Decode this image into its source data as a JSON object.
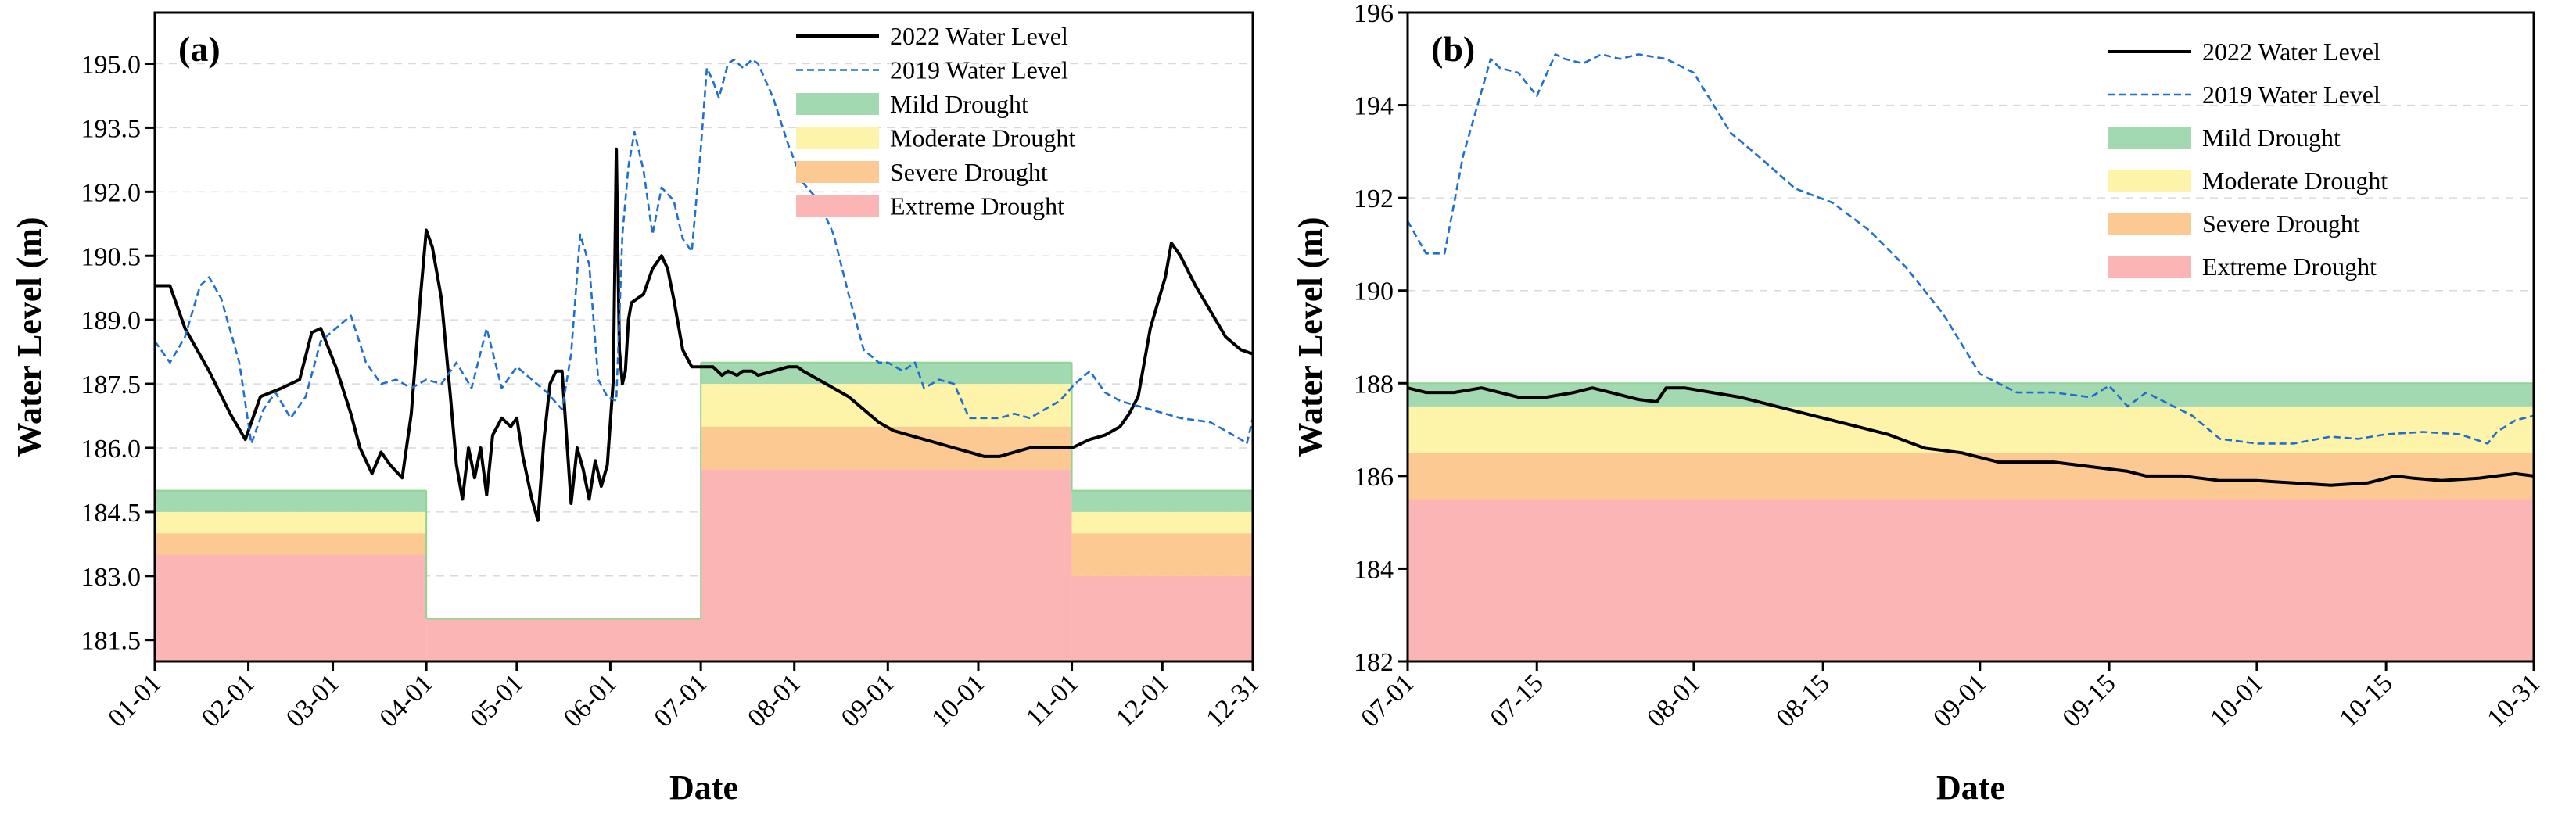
{
  "chart_data": [
    {
      "type": "line",
      "panel_label": "(a)",
      "xlabel": "Date",
      "ylabel": "Water Level (m)",
      "ylim": [
        181.0,
        196.2
      ],
      "xlim": [
        0,
        364
      ],
      "yticks": [
        181.5,
        183.0,
        184.5,
        186.0,
        187.5,
        189.0,
        190.5,
        192.0,
        193.5,
        195.0
      ],
      "ytick_labels": [
        "181.5",
        "183.0",
        "184.5",
        "186.0",
        "187.5",
        "189.0",
        "190.5",
        "192.0",
        "193.5",
        "195.0"
      ],
      "xticks": [
        0,
        31,
        59,
        90,
        120,
        151,
        181,
        212,
        243,
        273,
        304,
        334,
        364
      ],
      "xtick_labels": [
        "01-01",
        "02-01",
        "03-01",
        "04-01",
        "05-01",
        "06-01",
        "07-01",
        "08-01",
        "09-01",
        "10-01",
        "11-01",
        "12-01",
        "12-31"
      ],
      "legend_position": "top-right",
      "legend": [
        "2022 Water Level",
        "2019 Water Level",
        "Mild Drought",
        "Moderate Drought",
        "Severe Drought",
        "Extreme Drought"
      ],
      "colors": {
        "line_2022": "#000000",
        "line_2019": "#1f6fd1",
        "mild": "#a3d9b1",
        "moderate": "#fdf3a9",
        "severe": "#fbc991",
        "extreme": "#fbb5b5",
        "edge": "#8fd48f"
      },
      "drought_thresholds": [
        {
          "x_range": [
            0,
            90
          ],
          "extreme": 183.5,
          "severe": 184.0,
          "moderate": 184.5,
          "mild": 185.0
        },
        {
          "x_range": [
            90,
            181
          ],
          "extreme": 182.0,
          "severe": 182.0,
          "moderate": 182.0,
          "mild": 182.0
        },
        {
          "x_range": [
            181,
            304
          ],
          "extreme": 185.5,
          "severe": 186.5,
          "moderate": 187.5,
          "mild": 188.0
        },
        {
          "x_range": [
            304,
            364
          ],
          "extreme": 183.0,
          "severe": 184.0,
          "moderate": 184.5,
          "mild": 185.0
        }
      ],
      "series": [
        {
          "name": "2022 Water Level",
          "x": [
            0,
            5,
            10,
            18,
            25,
            30,
            35,
            42,
            48,
            52,
            55,
            60,
            65,
            68,
            72,
            75,
            78,
            82,
            85,
            88,
            90,
            92,
            95,
            98,
            100,
            102,
            104,
            106,
            108,
            110,
            112,
            115,
            118,
            120,
            122,
            125,
            127,
            129,
            131,
            133,
            135,
            138,
            140,
            142,
            144,
            146,
            148,
            150,
            152,
            153,
            154,
            155,
            156,
            157,
            158,
            160,
            162,
            165,
            168,
            170,
            172,
            175,
            178,
            181,
            185,
            188,
            190,
            193,
            195,
            198,
            200,
            205,
            210,
            213,
            215,
            220,
            225,
            230,
            235,
            240,
            245,
            250,
            255,
            260,
            265,
            270,
            275,
            280,
            285,
            290,
            295,
            300,
            304,
            310,
            315,
            320,
            323,
            326,
            330,
            335,
            337,
            340,
            345,
            350,
            355,
            360,
            364
          ],
          "y": [
            189.8,
            189.8,
            188.8,
            187.8,
            186.8,
            186.2,
            187.2,
            187.4,
            187.6,
            188.7,
            188.8,
            187.9,
            186.8,
            186.0,
            185.4,
            185.9,
            185.6,
            185.3,
            186.8,
            189.5,
            191.1,
            190.7,
            189.5,
            187.2,
            185.6,
            184.8,
            186.0,
            185.3,
            186.0,
            184.9,
            186.3,
            186.7,
            186.5,
            186.7,
            185.8,
            184.8,
            184.3,
            186.2,
            187.5,
            187.8,
            187.8,
            184.7,
            186.0,
            185.5,
            184.8,
            185.7,
            185.1,
            185.6,
            187.6,
            193.0,
            188.3,
            187.5,
            187.8,
            189.0,
            189.4,
            189.5,
            189.6,
            190.2,
            190.5,
            190.2,
            189.5,
            188.3,
            187.9,
            187.9,
            187.9,
            187.7,
            187.8,
            187.7,
            187.8,
            187.8,
            187.7,
            187.8,
            187.9,
            187.9,
            187.8,
            187.6,
            187.4,
            187.2,
            186.9,
            186.6,
            186.4,
            186.3,
            186.2,
            186.1,
            186.0,
            185.9,
            185.8,
            185.8,
            185.9,
            186.0,
            186.0,
            186.0,
            186.0,
            186.2,
            186.3,
            186.5,
            186.8,
            187.2,
            188.8,
            190.0,
            190.8,
            190.5,
            189.8,
            189.2,
            188.6,
            188.3,
            188.2
          ]
        },
        {
          "name": "2019 Water Level",
          "x": [
            0,
            5,
            10,
            15,
            18,
            22,
            28,
            32,
            36,
            40,
            45,
            50,
            55,
            60,
            65,
            70,
            75,
            80,
            85,
            90,
            95,
            100,
            105,
            110,
            115,
            120,
            125,
            130,
            135,
            138,
            141,
            144,
            147,
            150,
            153,
            155,
            157,
            159,
            162,
            165,
            168,
            172,
            175,
            178,
            181,
            183,
            185,
            187,
            190,
            192,
            195,
            198,
            200,
            205,
            210,
            215,
            220,
            225,
            230,
            235,
            240,
            243,
            248,
            252,
            255,
            260,
            265,
            270,
            275,
            280,
            285,
            290,
            295,
            300,
            305,
            310,
            315,
            320,
            330,
            340,
            350,
            355,
            360,
            362,
            364
          ],
          "y": [
            188.5,
            188.0,
            188.6,
            189.8,
            190.0,
            189.5,
            188.0,
            186.1,
            186.9,
            187.3,
            186.7,
            187.2,
            188.5,
            188.8,
            189.1,
            188.0,
            187.5,
            187.6,
            187.4,
            187.6,
            187.5,
            188.0,
            187.4,
            188.8,
            187.4,
            187.9,
            187.6,
            187.3,
            186.9,
            188.2,
            191.0,
            190.3,
            187.6,
            187.2,
            187.1,
            191.0,
            192.6,
            193.4,
            192.5,
            191.0,
            192.1,
            191.8,
            190.9,
            190.6,
            193.0,
            194.9,
            194.6,
            194.2,
            195.0,
            195.1,
            194.9,
            195.1,
            195.0,
            194.2,
            193.1,
            192.2,
            191.8,
            191.0,
            189.6,
            188.3,
            188.0,
            188.0,
            187.8,
            188.0,
            187.4,
            187.6,
            187.5,
            186.7,
            186.7,
            186.7,
            186.8,
            186.7,
            186.9,
            187.1,
            187.5,
            187.8,
            187.3,
            187.1,
            186.9,
            186.7,
            186.6,
            186.4,
            186.2,
            186.1,
            186.7
          ]
        }
      ]
    },
    {
      "type": "line",
      "panel_label": "(b)",
      "xlabel": "Date",
      "ylabel": "Water Level (m)",
      "ylim": [
        182,
        196
      ],
      "xlim": [
        0,
        122
      ],
      "yticks": [
        182,
        184,
        186,
        188,
        190,
        192,
        194,
        196
      ],
      "ytick_labels": [
        "182",
        "184",
        "186",
        "188",
        "190",
        "192",
        "194",
        "196"
      ],
      "xticks": [
        0,
        14,
        31,
        45,
        62,
        76,
        92,
        106,
        122
      ],
      "xtick_labels": [
        "07-01",
        "07-15",
        "08-01",
        "08-15",
        "09-01",
        "09-15",
        "10-01",
        "10-15",
        "10-31"
      ],
      "legend_position": "top-right",
      "legend": [
        "2022 Water Level",
        "2019 Water Level",
        "Mild Drought",
        "Moderate Drought",
        "Severe Drought",
        "Extreme Drought"
      ],
      "colors": {
        "line_2022": "#000000",
        "line_2019": "#1f6fd1",
        "mild": "#a3d9b1",
        "moderate": "#fdf3a9",
        "severe": "#fbc991",
        "extreme": "#fbb5b5",
        "edge": "#8fd48f"
      },
      "drought_thresholds": [
        {
          "x_range": [
            0,
            122
          ],
          "extreme": 185.5,
          "severe": 186.5,
          "moderate": 187.5,
          "mild": 188.0
        }
      ],
      "series": [
        {
          "name": "2022 Water Level",
          "x": [
            0,
            2,
            5,
            8,
            12,
            15,
            18,
            20,
            22,
            25,
            27,
            28,
            30,
            33,
            36,
            40,
            44,
            48,
            52,
            56,
            60,
            64,
            66,
            70,
            74,
            78,
            80,
            84,
            88,
            92,
            96,
            100,
            104,
            107,
            109,
            112,
            116,
            120,
            122
          ],
          "y": [
            187.9,
            187.8,
            187.8,
            187.9,
            187.7,
            187.7,
            187.8,
            187.9,
            187.8,
            187.65,
            187.6,
            187.9,
            187.9,
            187.8,
            187.7,
            187.5,
            187.3,
            187.1,
            186.9,
            186.6,
            186.5,
            186.3,
            186.3,
            186.3,
            186.2,
            186.1,
            186.0,
            186.0,
            185.9,
            185.9,
            185.85,
            185.8,
            185.85,
            186.0,
            185.95,
            185.9,
            185.95,
            186.05,
            186.0
          ]
        },
        {
          "name": "2019 Water Level",
          "x": [
            0,
            2,
            4,
            6,
            9,
            10,
            12,
            14,
            16,
            17,
            19,
            21,
            23,
            25,
            28,
            31,
            35,
            38,
            42,
            46,
            50,
            54,
            58,
            62,
            66,
            70,
            74,
            76,
            78,
            80,
            82,
            85,
            88,
            92,
            96,
            100,
            103,
            106,
            110,
            114,
            117,
            118,
            120,
            122
          ],
          "y": [
            191.5,
            190.8,
            190.8,
            192.9,
            195.0,
            194.8,
            194.7,
            194.2,
            195.1,
            195.0,
            194.9,
            195.1,
            195.0,
            195.1,
            195.0,
            194.7,
            193.4,
            192.9,
            192.2,
            191.9,
            191.3,
            190.5,
            189.5,
            188.2,
            187.8,
            187.8,
            187.7,
            187.95,
            187.5,
            187.8,
            187.6,
            187.3,
            186.8,
            186.7,
            186.7,
            186.85,
            186.8,
            186.9,
            186.95,
            186.9,
            186.7,
            186.95,
            187.2,
            187.3
          ]
        }
      ]
    }
  ]
}
